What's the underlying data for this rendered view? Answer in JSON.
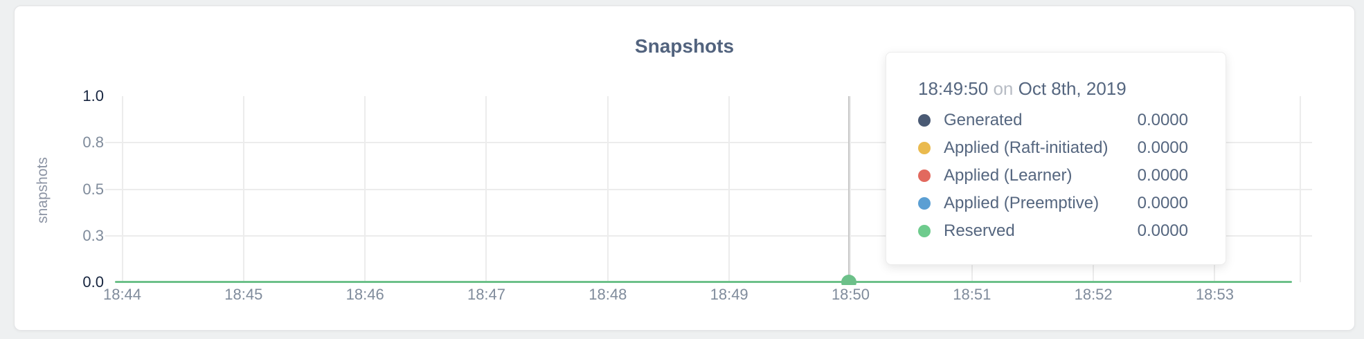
{
  "chart_data": {
    "type": "line",
    "title": "Snapshots",
    "xlabel": "",
    "ylabel": "snapshots",
    "ylim": [
      0,
      1
    ],
    "grid": true,
    "x_ticks": [
      "18:44",
      "18:45",
      "18:46",
      "18:47",
      "18:48",
      "18:49",
      "18:50",
      "18:51",
      "18:52",
      "18:53"
    ],
    "y_ticks": [
      {
        "label": "1.0",
        "value": 1.0,
        "emphasis": true
      },
      {
        "label": "0.8",
        "value": 0.75,
        "emphasis": false
      },
      {
        "label": "0.5",
        "value": 0.5,
        "emphasis": false
      },
      {
        "label": "0.3",
        "value": 0.25,
        "emphasis": false
      },
      {
        "label": "0.0",
        "value": 0.0,
        "emphasis": true
      }
    ],
    "series": [
      {
        "name": "Generated",
        "color": "#4a5a74",
        "values": [
          0,
          0,
          0,
          0,
          0,
          0,
          0,
          0,
          0,
          0
        ]
      },
      {
        "name": "Applied (Raft-initiated)",
        "color": "#eaba4e",
        "values": [
          0,
          0,
          0,
          0,
          0,
          0,
          0,
          0,
          0,
          0
        ]
      },
      {
        "name": "Applied (Learner)",
        "color": "#e2695e",
        "values": [
          0,
          0,
          0,
          0,
          0,
          0,
          0,
          0,
          0,
          0
        ]
      },
      {
        "name": "Applied (Preemptive)",
        "color": "#5b9fd3",
        "values": [
          0,
          0,
          0,
          0,
          0,
          0,
          0,
          0,
          0,
          0
        ]
      },
      {
        "name": "Reserved",
        "color": "#6ecb8d",
        "values": [
          0,
          0,
          0,
          0,
          0,
          0,
          0,
          0,
          0,
          0
        ]
      }
    ],
    "visible_line_color": "#6cc089",
    "legend_position": "tooltip"
  },
  "tooltip": {
    "time": "18:49:50",
    "conjunction": "on",
    "date": "Oct 8th, 2019",
    "hovered_x": "18:50",
    "rows": [
      {
        "name": "Generated",
        "color": "#4a5a74",
        "value": "0.0000"
      },
      {
        "name": "Applied (Raft-initiated)",
        "color": "#eaba4e",
        "value": "0.0000"
      },
      {
        "name": "Applied (Learner)",
        "color": "#e2695e",
        "value": "0.0000"
      },
      {
        "name": "Applied (Preemptive)",
        "color": "#5b9fd3",
        "value": "0.0000"
      },
      {
        "name": "Reserved",
        "color": "#6ecb8d",
        "value": "0.0000"
      }
    ]
  },
  "colors": {
    "page_bg": "#eef0f1",
    "card_bg": "#ffffff",
    "grid": "#ececec",
    "axis_label": "#7f8b9b",
    "axis_label_emphasis": "#17253f",
    "title": "#52637e",
    "tooltip_text": "#55667f",
    "tooltip_muted": "#b7bcc4",
    "hover_line": "#c8c8c8",
    "series_line": "#6cc089"
  }
}
